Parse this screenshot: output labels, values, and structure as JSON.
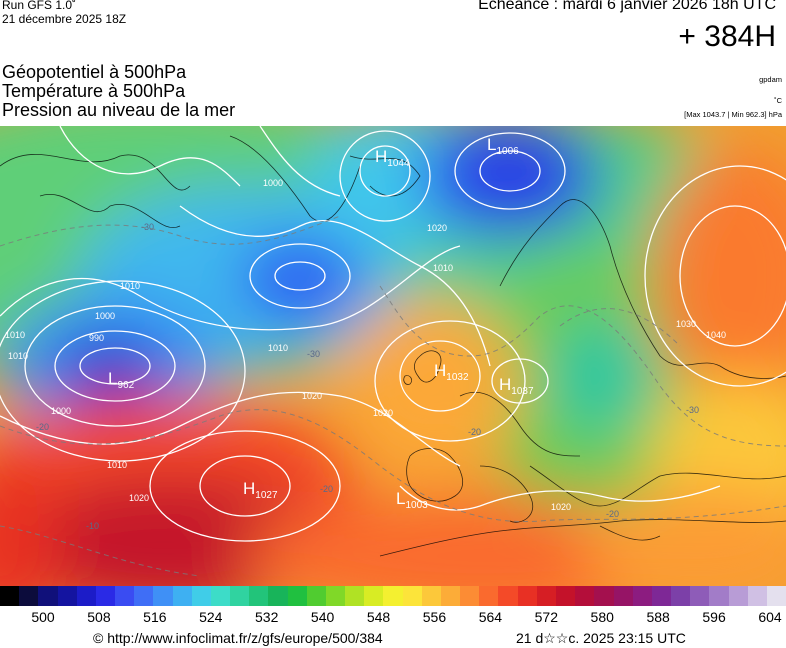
{
  "header": {
    "run_title": "Run GFS 1.0˚",
    "run_date": "21 décembre 2025 18Z",
    "valid_time": "Echéance : mardi 6 janvier 2026 18h UTC",
    "lead_time": "+ 384H"
  },
  "fields": [
    "Géopotentiel à 500hPa",
    "Température à 500hPa",
    "Pression au niveau de la mer"
  ],
  "units": {
    "geopotential": "gpdam",
    "temperature": "˚C",
    "pressure_range": "[Max 1043.7 | Min 962.3] hPa"
  },
  "pressure_centers": [
    {
      "type": "H",
      "value": "1044"
    },
    {
      "type": "L",
      "value": "1006"
    },
    {
      "type": "L",
      "value": "962"
    },
    {
      "type": "H",
      "value": "1032"
    },
    {
      "type": "H",
      "value": "1037"
    },
    {
      "type": "H",
      "value": "1027"
    },
    {
      "type": "L",
      "value": "1003"
    }
  ],
  "isobar_labels": [
    "1000",
    "1020",
    "1010",
    "1010",
    "1000",
    "1010",
    "1020",
    "1010",
    "1000",
    "1020",
    "1010",
    "1020",
    "1030",
    "1040",
    "1020",
    "990",
    "1010"
  ],
  "isotherm_labels": [
    "-30",
    "-30",
    "-20",
    "-20",
    "-20",
    "-20",
    "-10",
    "-30"
  ],
  "colorbar": {
    "colors": [
      "#000000",
      "#0c0c3c",
      "#10107a",
      "#1414a0",
      "#1c1cc8",
      "#2a2ae6",
      "#3a4cf2",
      "#3f6ef6",
      "#3f90f6",
      "#3eb0f2",
      "#40cde8",
      "#3ddcc8",
      "#30d3a0",
      "#22c47a",
      "#18b45a",
      "#20c040",
      "#50cc30",
      "#80d828",
      "#b0e224",
      "#d8ec24",
      "#f4f030",
      "#fce43a",
      "#fcc83a",
      "#fcac38",
      "#fc8c34",
      "#fa6a2e",
      "#f44a28",
      "#e83024",
      "#d61e24",
      "#c4122a",
      "#b40e3a",
      "#a4104e",
      "#961466",
      "#8c1c80",
      "#7e2896",
      "#7c40a8",
      "#8e5cb8",
      "#a27cc8",
      "#b89cd6",
      "#d0c0e4",
      "#e4e0ee"
    ],
    "tick_labels": [
      "500",
      "508",
      "516",
      "524",
      "532",
      "540",
      "548",
      "556",
      "564",
      "572",
      "580",
      "588",
      "596",
      "604"
    ]
  },
  "footer": {
    "url": "© http://www.infoclimat.fr/z/gfs/europe/500/384",
    "generated": "21 d☆☆c. 2025 23:15 UTC"
  }
}
